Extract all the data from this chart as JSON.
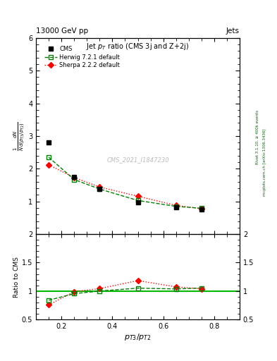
{
  "title_top": "13000 GeV pp",
  "title_right": "Jets",
  "plot_title": "Jet $p_{T}$ ratio (CMS 3j and Z+2j)",
  "cms_label": "CMS_2021_I1847230",
  "rivet_label": "Rivet 3.1.10, ≥ 400k events",
  "mcplots_label": "mcplots.cern.ch [arXiv:1306.3436]",
  "xlabel": "$p_{T3}/p_{T2}$",
  "ylabel_main": "$\\frac{1}{N}\\frac{dN}{d(p_{T3}/p_{T2})}$",
  "ylabel_ratio": "Ratio to CMS",
  "xlim": [
    0.1,
    0.9
  ],
  "ylim_main": [
    0.0,
    6.0
  ],
  "ylim_ratio": [
    0.5,
    2.0
  ],
  "cms_x": [
    0.15,
    0.25,
    0.35,
    0.5,
    0.65,
    0.75
  ],
  "cms_y": [
    2.8,
    1.75,
    1.38,
    0.98,
    0.82,
    0.75
  ],
  "herwig_x": [
    0.15,
    0.25,
    0.35,
    0.5,
    0.65,
    0.75
  ],
  "herwig_y": [
    2.35,
    1.67,
    1.38,
    1.03,
    0.85,
    0.79
  ],
  "sherpa_x": [
    0.15,
    0.25,
    0.35,
    0.5,
    0.65,
    0.75
  ],
  "sherpa_y": [
    2.12,
    1.73,
    1.44,
    1.16,
    0.88,
    0.78
  ],
  "herwig_ratio": [
    0.839,
    0.954,
    1.0,
    1.051,
    1.037,
    1.053
  ],
  "sherpa_ratio": [
    0.757,
    0.989,
    1.043,
    1.184,
    1.073,
    1.04
  ],
  "cms_color": "#000000",
  "herwig_color": "#008000",
  "sherpa_color": "#ff0000",
  "ref_line_color": "#00bb00",
  "bg_color": "#ffffff",
  "cms_marker": "s",
  "herwig_marker": "s",
  "sherpa_marker": "D",
  "cms_markersize": 5,
  "herwig_markersize": 5,
  "sherpa_markersize": 4
}
